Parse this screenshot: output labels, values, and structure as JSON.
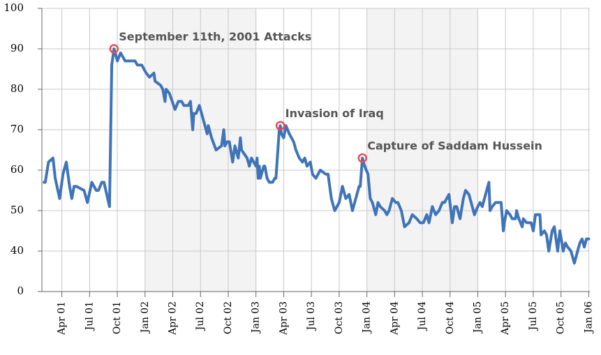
{
  "chart_data": {
    "type": "line",
    "color": "#3f74b8",
    "grid": true,
    "shaded_bands": [
      [
        2002,
        2003
      ],
      [
        2004,
        2005
      ]
    ],
    "xlim": [
      2001.07,
      2006.01
    ],
    "ylim": [
      30,
      100
    ],
    "yticks": [
      {
        "value": 30,
        "label": "0"
      },
      40,
      50,
      60,
      70,
      80,
      90,
      100
    ],
    "xticks": [
      {
        "value": 2001.25,
        "label": "Apr 01"
      },
      {
        "value": 2001.5,
        "label": "Jul 01"
      },
      {
        "value": 2001.75,
        "label": "Oct 01"
      },
      {
        "value": 2002,
        "label": "Jan 02"
      },
      {
        "value": 2002.25,
        "label": "Apr 02"
      },
      {
        "value": 2002.5,
        "label": "Jul 02"
      },
      {
        "value": 2002.75,
        "label": "Oct 02"
      },
      {
        "value": 2003,
        "label": "Jan 03"
      },
      {
        "value": 2003.25,
        "label": "Apr 03"
      },
      {
        "value": 2003.5,
        "label": "Jul 03"
      },
      {
        "value": 2003.75,
        "label": "Oct 03"
      },
      {
        "value": 2004,
        "label": "Jan 04"
      },
      {
        "value": 2004.25,
        "label": "Apr 04"
      },
      {
        "value": 2004.5,
        "label": "Jul 04"
      },
      {
        "value": 2004.75,
        "label": "Oct 04"
      },
      {
        "value": 2005,
        "label": "Jan 05"
      },
      {
        "value": 2005.25,
        "label": "Apr 05"
      },
      {
        "value": 2005.5,
        "label": "Jul 05"
      },
      {
        "value": 2005.75,
        "label": "Oct 05"
      },
      {
        "value": 2006,
        "label": "Jan 06"
      }
    ],
    "x": [
      2001.09,
      2001.1,
      2001.13,
      2001.17,
      2001.19,
      2001.23,
      2001.26,
      2001.29,
      2001.32,
      2001.34,
      2001.36,
      2001.38,
      2001.45,
      2001.48,
      2001.52,
      2001.56,
      2001.58,
      2001.61,
      2001.63,
      2001.68,
      2001.7,
      2001.72,
      2001.75,
      2001.78,
      2001.82,
      2001.91,
      2001.93,
      2001.97,
      2002.01,
      2002.04,
      2002.08,
      2002.09,
      2002.14,
      2002.16,
      2002.18,
      2002.19,
      2002.22,
      2002.27,
      2002.3,
      2002.33,
      2002.35,
      2002.39,
      2002.41,
      2002.43,
      2002.44,
      2002.46,
      2002.49,
      2002.52,
      2002.56,
      2002.57,
      2002.6,
      2002.64,
      2002.69,
      2002.71,
      2002.72,
      2002.74,
      2002.76,
      2002.79,
      2002.81,
      2002.84,
      2002.86,
      2002.87,
      2002.92,
      2002.94,
      2002.96,
      2003.0,
      2003.01,
      2003.02,
      2003.03,
      2003.04,
      2003.07,
      2003.08,
      2003.1,
      2003.12,
      2003.15,
      2003.17,
      2003.18,
      2003.21,
      2003.22,
      2003.23,
      2003.25,
      2003.27,
      2003.3,
      2003.34,
      2003.36,
      2003.39,
      2003.42,
      2003.44,
      2003.46,
      2003.49,
      2003.51,
      2003.54,
      2003.58,
      2003.63,
      2003.65,
      2003.68,
      2003.71,
      2003.75,
      2003.78,
      2003.81,
      2003.84,
      2003.87,
      2003.9,
      2003.93,
      2003.94,
      2003.96,
      2003.98,
      2004.01,
      2004.03,
      2004.05,
      2004.08,
      2004.1,
      2004.12,
      2004.16,
      2004.18,
      2004.2,
      2004.23,
      2004.26,
      2004.28,
      2004.31,
      2004.34,
      2004.38,
      2004.41,
      2004.45,
      2004.48,
      2004.51,
      2004.54,
      2004.56,
      2004.59,
      2004.62,
      2004.65,
      2004.68,
      2004.7,
      2004.74,
      2004.77,
      2004.79,
      2004.81,
      2004.84,
      2004.87,
      2004.89,
      2004.92,
      2004.94,
      2004.97,
      2005.0,
      2005.02,
      2005.04,
      2005.1,
      2005.11,
      2005.13,
      2005.16,
      2005.21,
      2005.23,
      2005.24,
      2005.26,
      2005.29,
      2005.31,
      2005.34,
      2005.35,
      2005.37,
      2005.4,
      2005.41,
      2005.44,
      2005.48,
      2005.5,
      2005.52,
      2005.55,
      2005.56,
      2005.57,
      2005.6,
      2005.62,
      2005.64,
      2005.67,
      2005.69,
      2005.71,
      2005.72,
      2005.74,
      2005.77,
      2005.79,
      2005.81,
      2005.84,
      2005.87,
      2005.89,
      2005.92,
      2005.94,
      2005.96,
      2005.98,
      2006.0
    ],
    "values": [
      57,
      57,
      62,
      63,
      58,
      53,
      59,
      62,
      56,
      53,
      56,
      56,
      55,
      52,
      57,
      55,
      55,
      57,
      57,
      51,
      86,
      90,
      87,
      89,
      87,
      87,
      86,
      86,
      84,
      83,
      84,
      82,
      81,
      80,
      77,
      80,
      79,
      75,
      77,
      77,
      76,
      76,
      77,
      70,
      74,
      74,
      76,
      73,
      69,
      71,
      68,
      65,
      66,
      70,
      66,
      67,
      67,
      62,
      66,
      63,
      68,
      65,
      63,
      61,
      63,
      61,
      63,
      58,
      61,
      58,
      61,
      61,
      58,
      57,
      57,
      58,
      58,
      70,
      71,
      69,
      68,
      71,
      69,
      67,
      65,
      63,
      62,
      63,
      61,
      62,
      59,
      58,
      60,
      59,
      59,
      53,
      50,
      52,
      56,
      53,
      54,
      50,
      53,
      56,
      56,
      63,
      61,
      59,
      53,
      52,
      49,
      52,
      51,
      50,
      49,
      50,
      53,
      52,
      52,
      50,
      46,
      47,
      49,
      48,
      47,
      47,
      49,
      47,
      51,
      49,
      50,
      52,
      52,
      54,
      47,
      51,
      51,
      48,
      53,
      55,
      54,
      52,
      49,
      51,
      52,
      51,
      57,
      50,
      51,
      52,
      52,
      45,
      47,
      50,
      49,
      48,
      48,
      50,
      48,
      46,
      48,
      47,
      47,
      45,
      49,
      49,
      49,
      44,
      45,
      44,
      40,
      45,
      46,
      42,
      40,
      45,
      40,
      42,
      41,
      40,
      37,
      39,
      42,
      43,
      41,
      43,
      43
    ],
    "annotations": [
      {
        "text": "September 11th, 2001 Attacks",
        "x": 2001.72,
        "y": 90
      },
      {
        "text": "Invasion of Iraq",
        "x": 2003.22,
        "y": 71
      },
      {
        "text": "Capture of Saddam Hussein",
        "x": 2003.96,
        "y": 63
      }
    ]
  }
}
